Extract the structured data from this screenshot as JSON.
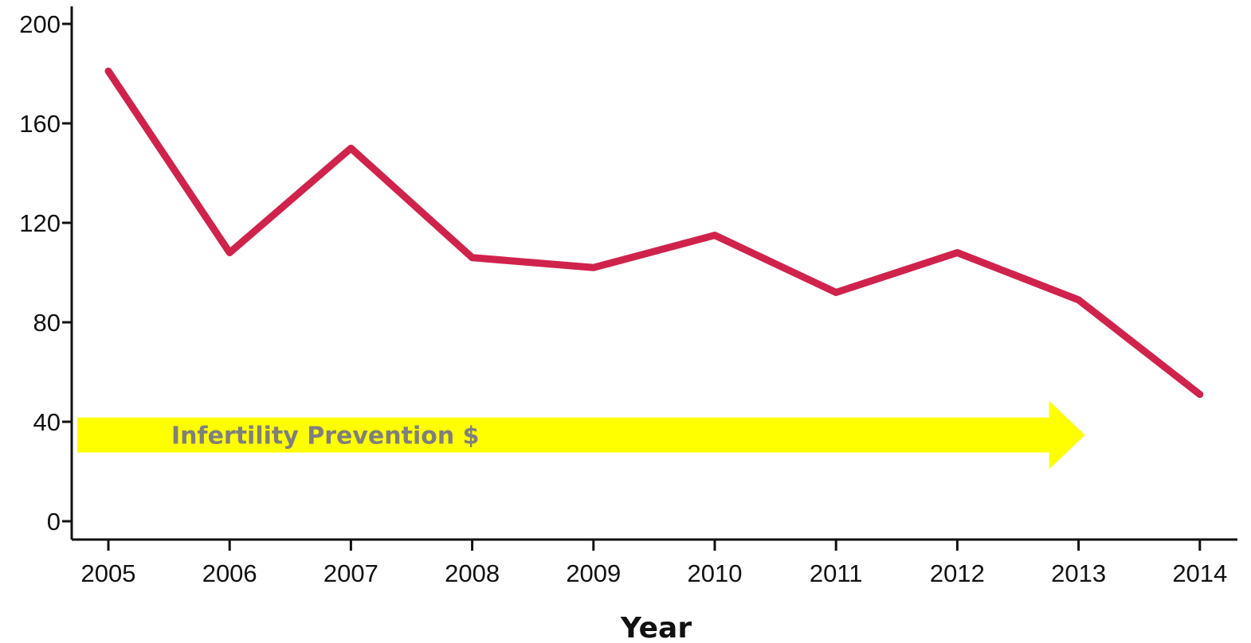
{
  "chart_data": {
    "type": "line",
    "x": [
      2005,
      2006,
      2007,
      2008,
      2009,
      2010,
      2011,
      2012,
      2013,
      2014
    ],
    "series": [
      {
        "values": [
          181,
          108,
          150,
          106,
          102,
          115,
          92,
          108,
          89,
          51
        ],
        "color": "#d0234c"
      }
    ],
    "xlabel": "Year",
    "ylabel": "",
    "title": "",
    "ylim": [
      0,
      200
    ],
    "yticks": [
      0,
      40,
      80,
      120,
      160,
      200
    ],
    "xtick_labels": [
      "2005",
      "2006",
      "2007",
      "2008",
      "2009",
      "2010",
      "2011",
      "2012",
      "2013",
      "2014"
    ],
    "ytick_labels": [
      "0",
      "40",
      "80",
      "120",
      "160",
      "200"
    ],
    "grid": false,
    "legend": "none",
    "annotation": {
      "text": "Infertility Prevention $",
      "arrow_color": "#ffff00",
      "text_color": "#7f7f7f",
      "x_range": [
        2005,
        2013
      ],
      "y_center": 35
    }
  }
}
